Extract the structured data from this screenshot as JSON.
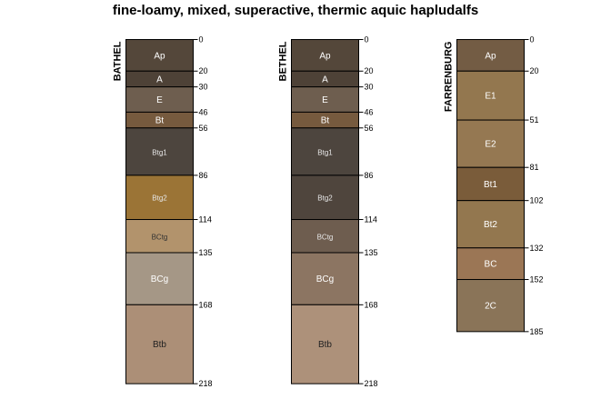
{
  "title": "fine-loamy, mixed, superactive, thermic aquic hapludalfs",
  "profiles": [
    {
      "name": "BATHEL",
      "horizons": [
        {
          "name": "Ap",
          "top": 0,
          "bottom": 20,
          "color": "#54473a",
          "label_color": "#ffffff"
        },
        {
          "name": "A",
          "top": 20,
          "bottom": 30,
          "color": "#4e4237",
          "label_color": "#ffffff"
        },
        {
          "name": "E",
          "top": 30,
          "bottom": 46,
          "color": "#6e5e4f",
          "label_color": "#ffffff"
        },
        {
          "name": "Bt",
          "top": 46,
          "bottom": 56,
          "color": "#765a3e",
          "label_color": "#ffffff"
        },
        {
          "name": "Btg1",
          "top": 56,
          "bottom": 86,
          "color": "#4d453e",
          "label_color": "#e6e6e6"
        },
        {
          "name": "Btg2",
          "top": 86,
          "bottom": 114,
          "color": "#9b7436",
          "label_color": "#e6e6e6"
        },
        {
          "name": "BCtg",
          "top": 114,
          "bottom": 135,
          "color": "#b2936c",
          "label_color": "#333333"
        },
        {
          "name": "BCg",
          "top": 135,
          "bottom": 168,
          "color": "#a59786",
          "label_color": "#ffffff"
        },
        {
          "name": "Btb",
          "top": 168,
          "bottom": 218,
          "color": "#ac8f77",
          "label_color": "#222222"
        }
      ]
    },
    {
      "name": "BETHEL",
      "horizons": [
        {
          "name": "Ap",
          "top": 0,
          "bottom": 20,
          "color": "#54473a",
          "label_color": "#ffffff"
        },
        {
          "name": "A",
          "top": 20,
          "bottom": 30,
          "color": "#4e4237",
          "label_color": "#ffffff"
        },
        {
          "name": "E",
          "top": 30,
          "bottom": 46,
          "color": "#6e5e4f",
          "label_color": "#ffffff"
        },
        {
          "name": "Bt",
          "top": 46,
          "bottom": 56,
          "color": "#765a3e",
          "label_color": "#ffffff"
        },
        {
          "name": "Btg1",
          "top": 56,
          "bottom": 86,
          "color": "#4d453e",
          "label_color": "#e6e6e6"
        },
        {
          "name": "Btg2",
          "top": 86,
          "bottom": 114,
          "color": "#4f453d",
          "label_color": "#e6e6e6"
        },
        {
          "name": "BCtg",
          "top": 114,
          "bottom": 135,
          "color": "#6e5d4f",
          "label_color": "#e6e6e6"
        },
        {
          "name": "BCg",
          "top": 135,
          "bottom": 168,
          "color": "#8c7562",
          "label_color": "#ffffff"
        },
        {
          "name": "Btb",
          "top": 168,
          "bottom": 218,
          "color": "#ad917a",
          "label_color": "#222222"
        }
      ]
    },
    {
      "name": "FARRENBURG",
      "horizons": [
        {
          "name": "Ap",
          "top": 0,
          "bottom": 20,
          "color": "#735c44",
          "label_color": "#ffffff"
        },
        {
          "name": "E1",
          "top": 20,
          "bottom": 51,
          "color": "#93774f",
          "label_color": "#ffffff"
        },
        {
          "name": "E2",
          "top": 51,
          "bottom": 81,
          "color": "#957852",
          "label_color": "#ffffff"
        },
        {
          "name": "Bt1",
          "top": 81,
          "bottom": 102,
          "color": "#7a5c3a",
          "label_color": "#ffffff"
        },
        {
          "name": "Bt2",
          "top": 102,
          "bottom": 132,
          "color": "#93774f",
          "label_color": "#ffffff"
        },
        {
          "name": "BC",
          "top": 132,
          "bottom": 152,
          "color": "#9b7655",
          "label_color": "#ffffff"
        },
        {
          "name": "2C",
          "top": 152,
          "bottom": 185,
          "color": "#8a7458",
          "label_color": "#ffffff"
        }
      ]
    }
  ]
}
